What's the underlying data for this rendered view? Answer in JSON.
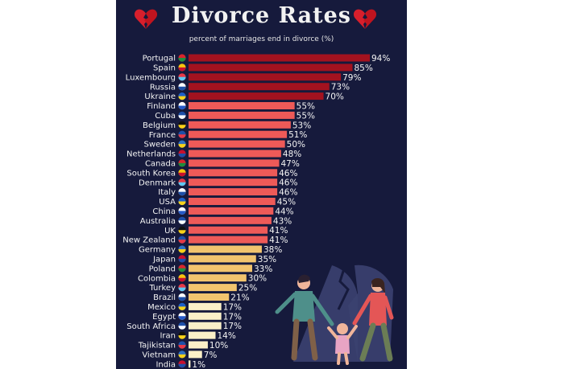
{
  "header": {
    "title": "Divorce Rates",
    "subtitle": "percent of marriages end in divorce (%)"
  },
  "colors": {
    "background": "#161a3c",
    "tier_high": "#a3121f",
    "tier_mid": "#ee5a58",
    "tier_low": "#f2c46e",
    "tier_lowest": "#fbf0c8"
  },
  "icons": {
    "title_left": "broken-heart-icon",
    "title_right": "broken-heart-icon",
    "flags": "country-flag-icon",
    "illustration": "family-divorce-illustration"
  },
  "chart_data": {
    "type": "bar",
    "orientation": "horizontal",
    "title": "Divorce Rates",
    "subtitle": "percent of marriages end in divorce (%)",
    "categories": [
      "Portugal",
      "Spain",
      "Luxembourg",
      "Russia",
      "Ukraine",
      "Finland",
      "Cuba",
      "Belgium",
      "France",
      "Sweden",
      "Netherlands",
      "Canada",
      "South Korea",
      "Denmark",
      "Italy",
      "USA",
      "China",
      "Australia",
      "UK",
      "New Zealand",
      "Germany",
      "Japan",
      "Poland",
      "Colombia",
      "Turkey",
      "Brazil",
      "Mexico",
      "Egypt",
      "South Africa",
      "Iran",
      "Tajikistan",
      "Vietnam",
      "India"
    ],
    "values": [
      94,
      85,
      79,
      73,
      70,
      55,
      55,
      53,
      51,
      50,
      48,
      47,
      46,
      46,
      46,
      45,
      44,
      43,
      41,
      41,
      38,
      35,
      33,
      30,
      25,
      21,
      17,
      17,
      17,
      14,
      10,
      7,
      1
    ],
    "labels": [
      "94%",
      "85%",
      "79%",
      "73%",
      "70%",
      "55%",
      "55%",
      "53%",
      "51%",
      "50%",
      "48%",
      "47%",
      "46%",
      "46%",
      "46%",
      "45%",
      "44%",
      "43%",
      "41%",
      "41%",
      "38%",
      "35%",
      "33%",
      "30%",
      "25%",
      "21%",
      "17%",
      "17%",
      "17%",
      "14%",
      "10%",
      "7%",
      "1%"
    ],
    "xlim": [
      0,
      94
    ],
    "grid": false,
    "legend": "none"
  }
}
